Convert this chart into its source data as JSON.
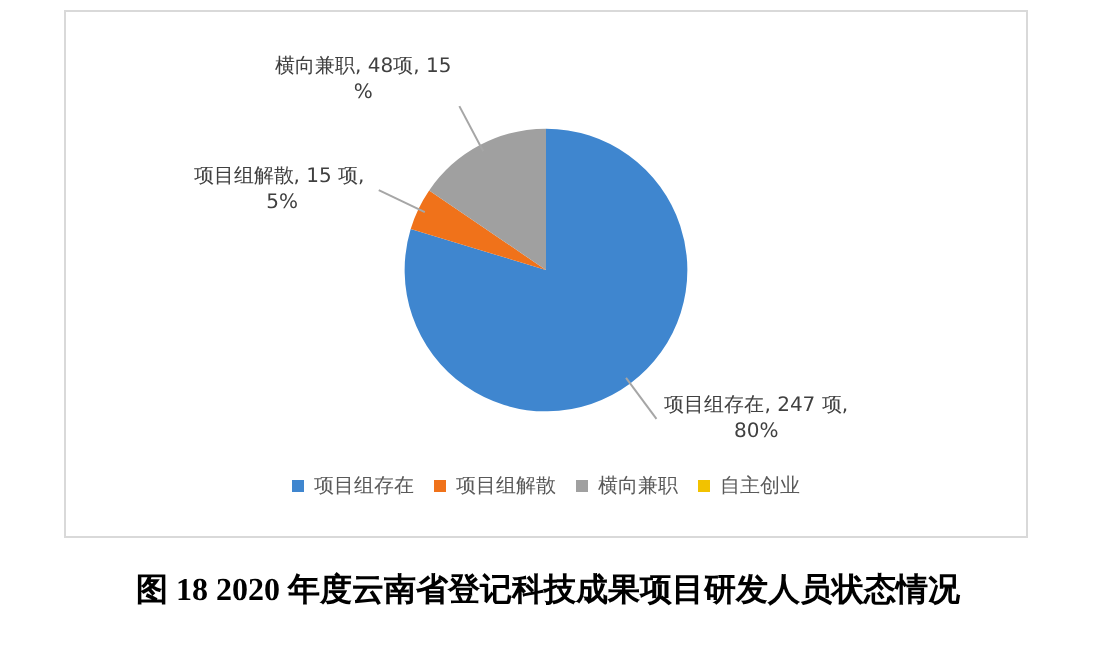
{
  "chart_data": {
    "type": "pie",
    "title": "图 18 2020 年度云南省登记科技成果项目研发人员状态情况",
    "categories": [
      "项目组存在",
      "项目组解散",
      "横向兼职",
      "自主创业"
    ],
    "values": [
      247,
      15,
      48,
      0
    ],
    "colors": [
      "#3f86cf",
      "#f0721a",
      "#a0a0a0",
      "#f2c200"
    ],
    "value_labels": [
      "项目组存在, 247 项, 80%",
      "项目组解散, 15 项, 5%",
      "横向兼职, 48项, 15%",
      null
    ],
    "legend": "bottom"
  }
}
